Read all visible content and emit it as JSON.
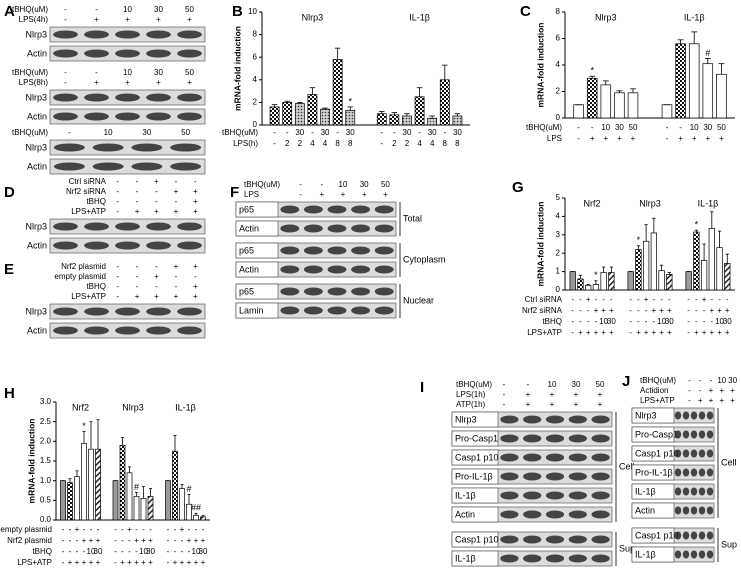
{
  "blots": [
    {
      "label": "A",
      "blocks": [
        {
          "treatments": [
            {
              "name": "tBHQ(uM)",
              "cells": [
                "-",
                "-",
                "10",
                "30",
                "50"
              ]
            },
            {
              "name": "LPS(4h)",
              "cells": [
                "-",
                "+",
                "+",
                "+",
                "+"
              ]
            }
          ],
          "sections": [
            {
              "bands": [
                "Nlrp3",
                "Actin"
              ]
            }
          ]
        },
        {
          "treatments": [
            {
              "name": "tBHQ(uM)",
              "cells": [
                "-",
                "-",
                "10",
                "30",
                "50"
              ]
            },
            {
              "name": "LPS(8h)",
              "cells": [
                "-",
                "+",
                "+",
                "+",
                "+"
              ]
            }
          ],
          "sections": [
            {
              "bands": [
                "Nlrp3",
                "Actin"
              ]
            }
          ]
        },
        {
          "treatments": [
            {
              "name": "tBHQ(uM)",
              "cells": [
                "-",
                "10",
                "30",
                "50"
              ]
            }
          ],
          "sections": [
            {
              "bands": [
                "Nlrp3",
                "Actin"
              ]
            }
          ]
        }
      ]
    },
    {
      "label": "D",
      "blocks": [
        {
          "treatments": [
            {
              "name": "Ctrl siRNA",
              "cells": [
                "-",
                "-",
                "+",
                "-",
                "-"
              ]
            },
            {
              "name": "Nrf2 siRNA",
              "cells": [
                "-",
                "-",
                "-",
                "+",
                "+"
              ]
            },
            {
              "name": "tBHQ",
              "cells": [
                "-",
                "-",
                "-",
                "-",
                "+"
              ]
            },
            {
              "name": "LPS+ATP",
              "cells": [
                "-",
                "+",
                "+",
                "+",
                "+"
              ]
            }
          ],
          "sections": [
            {
              "bands": [
                "Nlrp3",
                "Actin"
              ]
            }
          ]
        }
      ]
    },
    {
      "label": "E",
      "blocks": [
        {
          "treatments": [
            {
              "name": "Nrf2 plasmid",
              "cells": [
                "-",
                "-",
                "-",
                "+",
                "+"
              ]
            },
            {
              "name": "empty plasmid",
              "cells": [
                "-",
                "-",
                "+",
                "-",
                "-"
              ]
            },
            {
              "name": "tBHQ",
              "cells": [
                "-",
                "-",
                "-",
                "-",
                "+"
              ]
            },
            {
              "name": "LPS+ATP",
              "cells": [
                "-",
                "+",
                "+",
                "+",
                "+"
              ]
            }
          ],
          "sections": [
            {
              "bands": [
                "Nlrp3",
                "Actin"
              ]
            }
          ]
        }
      ]
    },
    {
      "label": "F",
      "blocks": [
        {
          "treatments": [
            {
              "name": "tBHQ(uM)",
              "cells": [
                "-",
                "-",
                "10",
                "30",
                "50"
              ]
            },
            {
              "name": "LPS",
              "cells": [
                "-",
                "+",
                "+",
                "+",
                "+"
              ]
            }
          ],
          "sections": [
            {
              "name": "Total",
              "bands": [
                "p65",
                "Actin"
              ]
            },
            {
              "name": "Cytoplasm",
              "bands": [
                "p65",
                "Actin"
              ]
            },
            {
              "name": "Nuclear",
              "bands": [
                "p65",
                "Lamin"
              ]
            }
          ]
        }
      ]
    },
    {
      "label": "I",
      "blocks": [
        {
          "treatments": [
            {
              "name": "tBHQ(uM)",
              "cells": [
                "-",
                "-",
                "10",
                "30",
                "50"
              ]
            },
            {
              "name": "LPS(1h)",
              "cells": [
                "-",
                "+",
                "+",
                "+",
                "+"
              ]
            },
            {
              "name": "ATP(1h)",
              "cells": [
                "-",
                "+",
                "+",
                "+",
                "+"
              ]
            }
          ],
          "sections": [
            {
              "name": "Cell",
              "bands": [
                "Nlrp3",
                "Pro-Casp1",
                "Casp1 p10",
                "Pro-IL-1β",
                "IL-1β",
                "Actin"
              ]
            },
            {
              "name": "Sup",
              "bands": [
                "Casp1 p10",
                "IL-1β"
              ]
            }
          ]
        }
      ]
    },
    {
      "label": "J",
      "blocks": [
        {
          "treatments": [
            {
              "name": "tBHQ(uM)",
              "cells": [
                "-",
                "-",
                "-",
                "10",
                "30"
              ]
            },
            {
              "name": "Actidion",
              "cells": [
                "-",
                "-",
                "+",
                "+",
                "+"
              ]
            },
            {
              "name": "LPS+ATP",
              "cells": [
                "-",
                "+",
                "+",
                "+",
                "+"
              ]
            }
          ],
          "sections": [
            {
              "name": "Cell",
              "bands": [
                "Nlrp3",
                "Pro-Casp1",
                "Casp1 p10",
                "Pro-IL-1β",
                "IL-1β",
                "Actin"
              ]
            },
            {
              "name": "Sup",
              "bands": [
                "Casp1 p10",
                "IL-1β"
              ]
            }
          ]
        }
      ]
    }
  ],
  "chart_data": [
    {
      "type": "bar",
      "label": "B",
      "ylabel": "mRNA-fold induction",
      "ylim": [
        0,
        10
      ],
      "yticks": [
        0,
        2,
        4,
        6,
        8,
        10
      ],
      "patterns": [
        "check",
        "check",
        "dots",
        "check",
        "dots",
        "check",
        "dots"
      ],
      "groups": [
        {
          "name": "Nlrp3",
          "values": [
            1.6,
            2.0,
            1.9,
            2.7,
            1.4,
            5.8,
            1.3
          ],
          "errors": [
            0.2,
            0.1,
            0.1,
            0.6,
            0.1,
            1.0,
            0.3
          ],
          "notes": [
            null,
            null,
            null,
            null,
            null,
            null,
            "*"
          ]
        },
        {
          "name": "IL-1β",
          "values": [
            1.0,
            0.9,
            0.8,
            2.5,
            0.6,
            4.0,
            0.8
          ],
          "errors": [
            0.2,
            0.2,
            0.2,
            0.8,
            0.2,
            1.3,
            0.2
          ],
          "notes": [
            null,
            null,
            null,
            null,
            null,
            null,
            null
          ]
        }
      ],
      "treatments": [
        {
          "name": "tBHQ(uM)",
          "cells": [
            "-",
            "-",
            "30",
            "-",
            "30",
            "-",
            "30",
            "-",
            "-",
            "30",
            "-",
            "30",
            "-",
            "30"
          ]
        },
        {
          "name": "LPS(h)",
          "cells": [
            "-",
            "2",
            "2",
            "4",
            "4",
            "8",
            "8",
            "-",
            "2",
            "2",
            "4",
            "4",
            "8",
            "8"
          ]
        }
      ]
    },
    {
      "type": "bar",
      "label": "C",
      "ylabel": "mRNA-fold induction",
      "ylim": [
        0,
        8
      ],
      "yticks": [
        0,
        2,
        4,
        6,
        8
      ],
      "patterns": [
        "white",
        "check",
        "white",
        "white",
        "white"
      ],
      "groups": [
        {
          "name": "Nlrp3",
          "values": [
            1.0,
            3.0,
            2.5,
            1.9,
            1.9
          ],
          "errors": [
            0,
            0.15,
            0.3,
            0.15,
            0.3
          ],
          "notes": [
            null,
            "*",
            null,
            null,
            null
          ]
        },
        {
          "name": "IL-1β",
          "values": [
            1.0,
            5.6,
            5.6,
            4.1,
            3.3
          ],
          "errors": [
            0,
            0.3,
            0.9,
            0.4,
            0.8
          ],
          "notes": [
            null,
            null,
            null,
            "#",
            null
          ]
        }
      ],
      "treatments": [
        {
          "name": "tBHQ(uM)",
          "cells": [
            "-",
            "-",
            "10",
            "30",
            "50",
            "-",
            "-",
            "10",
            "30",
            "50"
          ]
        },
        {
          "name": "LPS",
          "cells": [
            "-",
            "+",
            "+",
            "+",
            "+",
            "-",
            "+",
            "+",
            "+",
            "+"
          ]
        }
      ]
    },
    {
      "type": "bar",
      "label": "G",
      "ylabel": "mRNA-fold induction",
      "ylim": [
        0,
        5
      ],
      "yticks": [
        0,
        1,
        2,
        3,
        4,
        5
      ],
      "patterns": [
        "gray",
        "check",
        "white",
        "white",
        "white",
        "stripe"
      ],
      "groups": [
        {
          "name": "Nrf2",
          "values": [
            1.0,
            0.6,
            0.25,
            0.3,
            0.95,
            0.95
          ],
          "errors": [
            0,
            0.2,
            0.05,
            0.2,
            0.3,
            0.3
          ],
          "notes": [
            null,
            null,
            null,
            "*",
            null,
            null
          ]
        },
        {
          "name": "Nlrp3",
          "values": [
            1.0,
            2.2,
            2.65,
            3.1,
            1.05,
            0.85
          ],
          "errors": [
            0,
            0.2,
            0.9,
            0.8,
            0.3,
            0.1
          ],
          "notes": [
            null,
            "*",
            null,
            null,
            null,
            null
          ]
        },
        {
          "name": "IL-1β",
          "values": [
            1.0,
            3.15,
            1.6,
            3.35,
            2.3,
            1.45
          ],
          "errors": [
            0,
            0.1,
            0.9,
            0.9,
            0.9,
            0.5
          ],
          "notes": [
            null,
            "*",
            null,
            null,
            null,
            null
          ]
        }
      ],
      "treatments": [
        {
          "name": "Ctrl siRNA",
          "cells": [
            "-",
            "-",
            "+",
            "-",
            "-",
            "-",
            "-",
            "-",
            "+",
            "-",
            "-",
            "-",
            "-",
            "-",
            "+",
            "-",
            "-",
            "-"
          ]
        },
        {
          "name": "Nrf2 siRNA",
          "cells": [
            "-",
            "-",
            "-",
            "+",
            "+",
            "+",
            "-",
            "-",
            "-",
            "+",
            "+",
            "+",
            "-",
            "-",
            "-",
            "+",
            "+",
            "+"
          ]
        },
        {
          "name": "tBHQ",
          "cells": [
            "-",
            "-",
            "-",
            "-",
            "10",
            "30",
            "-",
            "-",
            "-",
            "-",
            "10",
            "30",
            "-",
            "-",
            "-",
            "-",
            "10",
            "30"
          ]
        },
        {
          "name": "LPS+ATP",
          "cells": [
            "-",
            "+",
            "+",
            "+",
            "+",
            "+",
            "-",
            "+",
            "+",
            "+",
            "+",
            "+",
            "-",
            "+",
            "+",
            "+",
            "+",
            "+"
          ]
        }
      ]
    },
    {
      "type": "bar",
      "label": "H",
      "ylabel": "mRNA-fold induction",
      "ylim": [
        0,
        3
      ],
      "yticks": [
        {
          "value": 0,
          "label": "0.0"
        },
        0.5,
        {
          "value": 1,
          "label": "1.0"
        },
        1.5,
        {
          "value": 2,
          "label": "2.0"
        },
        2.5,
        {
          "value": 3,
          "label": "3.0"
        }
      ],
      "patterns": [
        "gray",
        "check",
        "white",
        "white",
        "white",
        "stripe"
      ],
      "groups": [
        {
          "name": "Nrf2",
          "values": [
            1.0,
            0.95,
            1.1,
            1.95,
            1.8,
            1.8
          ],
          "errors": [
            0,
            0.1,
            0.15,
            0.3,
            0.7,
            0.75
          ],
          "notes": [
            null,
            null,
            null,
            "*",
            null,
            null
          ]
        },
        {
          "name": "Nlrp3",
          "values": [
            1.0,
            1.9,
            1.2,
            0.6,
            0.55,
            0.6
          ],
          "errors": [
            0,
            0.2,
            0.15,
            0.1,
            0.3,
            0.2
          ],
          "notes": [
            null,
            null,
            null,
            "#",
            null,
            null
          ]
        },
        {
          "name": "IL-1β",
          "values": [
            1.0,
            1.75,
            0.8,
            0.4,
            0.12,
            0.08
          ],
          "errors": [
            0,
            0.4,
            0.1,
            0.25,
            0.05,
            0.03
          ],
          "notes": [
            null,
            null,
            null,
            "#",
            "##",
            null
          ]
        }
      ],
      "treatments": [
        {
          "name": "empty plasmid",
          "cells": [
            "-",
            "-",
            "+",
            "-",
            "-",
            "-",
            "-",
            "-",
            "+",
            "-",
            "-",
            "-",
            "-",
            "-",
            "+",
            "-",
            "-",
            "-"
          ]
        },
        {
          "name": "Nrf2 plasmid",
          "cells": [
            "-",
            "-",
            "-",
            "+",
            "+",
            "+",
            "-",
            "-",
            "-",
            "+",
            "+",
            "+",
            "-",
            "-",
            "-",
            "+",
            "+",
            "+"
          ]
        },
        {
          "name": "tBHQ",
          "cells": [
            "-",
            "-",
            "-",
            "-",
            "10",
            "30",
            "-",
            "-",
            "-",
            "-",
            "10",
            "30",
            "-",
            "-",
            "-",
            "-",
            "10",
            "30"
          ]
        },
        {
          "name": "LPS+ATP",
          "cells": [
            "-",
            "+",
            "+",
            "+",
            "+",
            "+",
            "-",
            "+",
            "+",
            "+",
            "+",
            "+",
            "-",
            "+",
            "+",
            "+",
            "+",
            "+"
          ]
        }
      ]
    }
  ]
}
